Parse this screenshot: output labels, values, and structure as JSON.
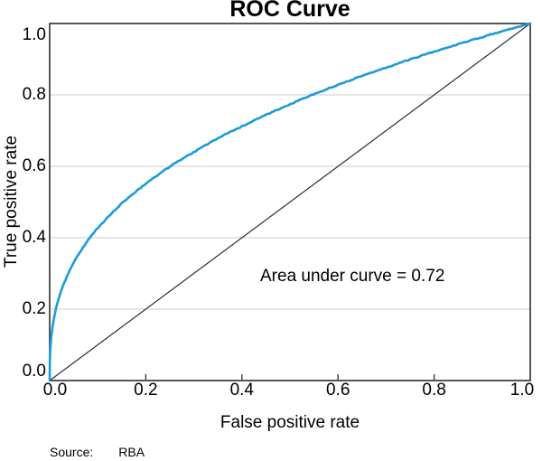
{
  "title": "ROC Curve",
  "chart_data": {
    "type": "line",
    "title": "ROC Curve",
    "xlabel": "False positive rate",
    "ylabel": "True positive rate",
    "xlim": [
      0,
      1
    ],
    "ylim": [
      0,
      1
    ],
    "xticks": [
      0,
      0.2,
      0.4,
      0.6,
      0.8,
      1.0
    ],
    "xtick_labels": [
      "0.0",
      "0.2",
      "0.4",
      "0.6",
      "0.8",
      "1.0"
    ],
    "yticks": [
      1.0,
      0.8,
      0.6,
      0.4,
      0.2,
      0
    ],
    "ytick_labels": [
      "1.0",
      "0.8",
      "0.6",
      "0.4",
      "0.2",
      "0.0"
    ],
    "grid": "horizontal",
    "legend": "none",
    "annotation": {
      "text": "Area under curve = 0.72",
      "x": 0.44,
      "y": 0.29
    },
    "auc": 0.72,
    "series": [
      {
        "name": "ROC curve",
        "color": "#1b9cd8",
        "style": "solid",
        "points": [
          [
            0,
            0
          ],
          [
            0.0005,
            0.06
          ],
          [
            0.001,
            0.078
          ],
          [
            0.002,
            0.1
          ],
          [
            0.004,
            0.13
          ],
          [
            0.007,
            0.159
          ],
          [
            0.012,
            0.195
          ],
          [
            0.02,
            0.235
          ],
          [
            0.03,
            0.273
          ],
          [
            0.05,
            0.33
          ],
          [
            0.075,
            0.384
          ],
          [
            0.1,
            0.427
          ],
          [
            0.15,
            0.496
          ],
          [
            0.2,
            0.551
          ],
          [
            0.25,
            0.599
          ],
          [
            0.3,
            0.64
          ],
          [
            0.35,
            0.678
          ],
          [
            0.4,
            0.712
          ],
          [
            0.45,
            0.744
          ],
          [
            0.5,
            0.774
          ],
          [
            0.55,
            0.802
          ],
          [
            0.6,
            0.828
          ],
          [
            0.65,
            0.853
          ],
          [
            0.7,
            0.876
          ],
          [
            0.75,
            0.899
          ],
          [
            0.8,
            0.921
          ],
          [
            0.85,
            0.942
          ],
          [
            0.9,
            0.962
          ],
          [
            0.95,
            0.981
          ],
          [
            1,
            1
          ]
        ]
      },
      {
        "name": "chance diagonal",
        "color": "#2f2f2f",
        "style": "thin",
        "points": [
          [
            0,
            0
          ],
          [
            1,
            1
          ]
        ]
      }
    ]
  },
  "source": {
    "label": "Source:",
    "value": "RBA"
  },
  "colors": {
    "curve": "#1b9cd8",
    "diagonal": "#2f2f2f",
    "grid": "#d6d6d6",
    "axis": "#3a3a3a",
    "background": "#ffffff",
    "text": "#000000"
  }
}
